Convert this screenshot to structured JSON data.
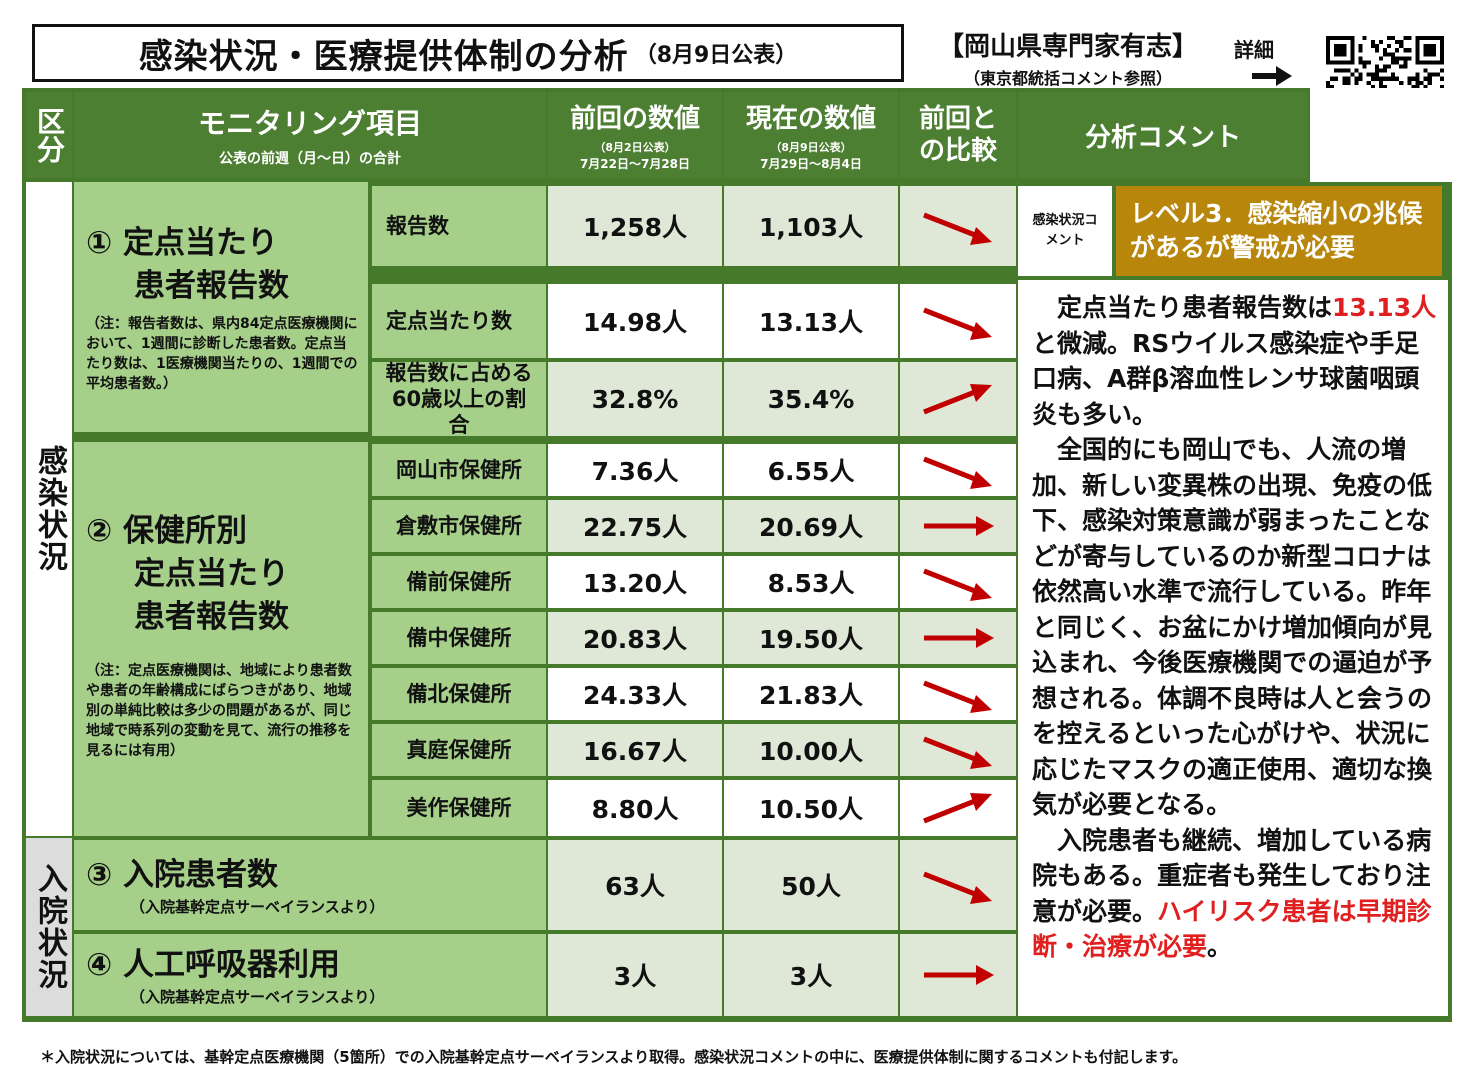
{
  "header": {
    "title": "感染状況・医療提供体制の分析",
    "title_date": "（8月9日公表）",
    "org": "【岡山県専門家有志】",
    "org_sub": "（東京都統括コメント参照）",
    "detail_label": "詳細"
  },
  "columns": {
    "category": "区分",
    "monitoring": "モニタリング項目",
    "monitoring_sub": "公表の前週（月～日）の合計",
    "prev": "前回の数値",
    "prev_sub1": "（8月2日公表）",
    "prev_sub2": "7月22日～7月28日",
    "curr": "現在の数値",
    "curr_sub1": "（8月9日公表）",
    "curr_sub2": "7月29日～8月4日",
    "compare": "前回との比較",
    "comment": "分析コメント"
  },
  "categories": {
    "infection": "感染状況",
    "hospital": "入院状況"
  },
  "groups": {
    "g1_name_1": "① 定点当たり",
    "g1_name_2": "患者報告数",
    "g1_note": "（注：報告者数は、県内84定点医療機関において、1週間に診断した患者数。定点当たり数は、1医療機関当たりの、1週間での平均患者数。）",
    "g2_name_1": "② 保健所別",
    "g2_name_2": "定点当たり",
    "g2_name_3": "患者報告数",
    "g2_note": "（注：定点医療機関は、地域により患者数や患者の年齢構成にばらつきがあり、地域別の単純比較は多少の問題があるが、同じ地域で時系列の変動を見て、流行の推移を見るには有用）",
    "g3_name": "③ 入院患者数",
    "g3_note": "（入院基幹定点サーベイランスより）",
    "g4_name": "④ 人工呼吸器利用",
    "g4_note": "（入院基幹定点サーベイランスより）"
  },
  "rows": [
    {
      "item": "報告数",
      "prev": "1,258人",
      "curr": "1,103人",
      "trend": "down"
    },
    {
      "item": "定点当たり数",
      "prev": "14.98人",
      "curr": "13.13人",
      "trend": "down"
    },
    {
      "item": "報告数に占める60歳以上の割合",
      "prev": "32.8%",
      "curr": "35.4%",
      "trend": "up"
    },
    {
      "item": "岡山市保健所",
      "prev": "7.36人",
      "curr": "6.55人",
      "trend": "down"
    },
    {
      "item": "倉敷市保健所",
      "prev": "22.75人",
      "curr": "20.69人",
      "trend": "flat"
    },
    {
      "item": "備前保健所",
      "prev": "13.20人",
      "curr": "8.53人",
      "trend": "down"
    },
    {
      "item": "備中保健所",
      "prev": "20.83人",
      "curr": "19.50人",
      "trend": "flat"
    },
    {
      "item": "備北保健所",
      "prev": "24.33人",
      "curr": "21.83人",
      "trend": "down"
    },
    {
      "item": "真庭保健所",
      "prev": "16.67人",
      "curr": "10.00人",
      "trend": "down"
    },
    {
      "item": "美作保健所",
      "prev": "8.80人",
      "curr": "10.50人",
      "trend": "up"
    },
    {
      "item": "",
      "prev": "63人",
      "curr": "50人",
      "trend": "down"
    },
    {
      "item": "",
      "prev": "3人",
      "curr": "3人",
      "trend": "flat"
    }
  ],
  "level": {
    "label": "感染状況コメント",
    "text": "レベル3．感染縮小の兆候があるが警戒が必要",
    "color": "#b8860b"
  },
  "comment": {
    "p1_a": "定点当たり患者報告数は",
    "p1_red": "13.13人",
    "p1_b": "と微減。RSウイルス感染症や手足口病、A群β溶血性レンサ球菌咽頭炎も多い。",
    "p2": "全国的にも岡山でも、人流の増加、新しい変異株の出現、免疫の低下、感染対策意識が弱まったことなどが寄与しているのか新型コロナは依然高い水準で流行している。昨年と同じく、お盆にかけ増加傾向が見込まれ、今後医療機関での逼迫が予想される。体調不良時は人と会うのを控えるといった心がけや、状況に応じたマスクの適正使用、適切な換気が必要となる。",
    "p3_a": "入院患者も継続、増加している病院もある。重症者も発生しており注意が必要。",
    "p3_red": "ハイリスク患者は早期診断・治療が必要",
    "p3_b": "。"
  },
  "footnote": "＊入院状況については、基幹定点医療機関（5箇所）での入院基幹定点サーベイランスより取得。感染状況コメントの中に、医療提供体制に関するコメントも付記します。",
  "colors": {
    "header_green": "#4d7f32",
    "light_green": "#a6d08a",
    "arrow_red": "#c00000",
    "text_red": "#e02020"
  }
}
